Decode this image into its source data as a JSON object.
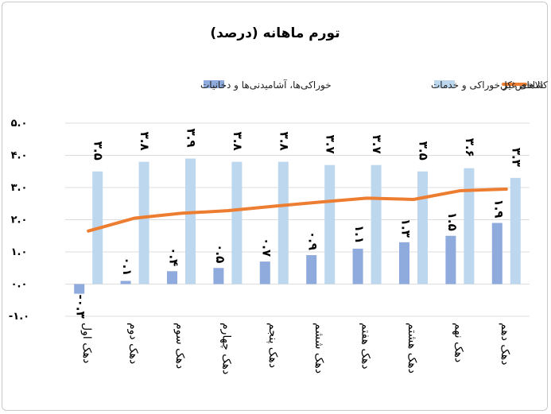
{
  "chart_data": {
    "type": "bar",
    "title": "تورم ماهانه (درصد)",
    "categories": [
      "دهک اول",
      "دهک دوم",
      "دهک سوم",
      "دهک چهارم",
      "دهک پنجم",
      "دهک ششم",
      "دهک هفتم",
      "دهک هشتم",
      "دهک نهم",
      "دهک دهم"
    ],
    "ylim": [
      -1.0,
      5.0
    ],
    "yticks": [
      -1.0,
      0.0,
      1.0,
      2.0,
      3.0,
      4.0,
      5.0
    ],
    "ytick_labels": [
      "-۱.۰",
      "۰.۰",
      "۱.۰",
      "۲.۰",
      "۳.۰",
      "۴.۰",
      "۵.۰"
    ],
    "grid": true,
    "legend_position": "top",
    "series": [
      {
        "name": "خوراکی‌ها، آشامیدنی‌ها و دخانیات",
        "kind": "bar",
        "color": "#8faadc",
        "values": [
          -0.3,
          0.1,
          0.4,
          0.5,
          0.7,
          0.9,
          1.1,
          1.3,
          1.5,
          1.9
        ],
        "labels": [
          "-۰.۳",
          "۰.۱",
          "۰.۴",
          "۰.۵",
          "۰.۷",
          "۰.۹",
          "۱.۱",
          "۱.۳",
          "۱.۵",
          "۱.۹"
        ]
      },
      {
        "name": "کالاهای غیر خوراکی و خدمات",
        "kind": "bar",
        "color": "#bdd7ee",
        "values": [
          3.5,
          3.8,
          3.9,
          3.8,
          3.8,
          3.7,
          3.7,
          3.5,
          3.6,
          3.3
        ],
        "labels": [
          "۳.۵",
          "۳.۸",
          "۳.۹",
          "۳.۸",
          "۳.۸",
          "۳.۷",
          "۳.۷",
          "۳.۵",
          "۳.۶",
          "۳.۳"
        ]
      },
      {
        "name": "شاخص کل",
        "kind": "line",
        "color": "#ed7d31",
        "values": [
          1.65,
          2.05,
          2.2,
          2.28,
          2.42,
          2.55,
          2.67,
          2.63,
          2.9,
          2.95
        ]
      }
    ]
  }
}
